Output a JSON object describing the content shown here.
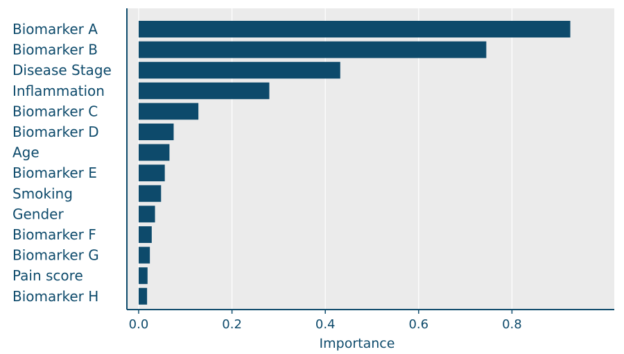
{
  "chart_data": {
    "type": "bar",
    "orientation": "horizontal",
    "title": "",
    "xlabel": "Importance",
    "ylabel": "",
    "categories": [
      "Biomarker A",
      "Biomarker B",
      "Disease Stage",
      "Inflammation",
      "Biomarker C",
      "Biomarker D",
      "Age",
      "Biomarker E",
      "Smoking",
      "Gender",
      "Biomarker F",
      "Biomarker G",
      "Pain score",
      "Biomarker H"
    ],
    "values": [
      0.925,
      0.745,
      0.432,
      0.28,
      0.128,
      0.075,
      0.066,
      0.056,
      0.048,
      0.035,
      0.028,
      0.024,
      0.019,
      0.018
    ],
    "xlim": [
      -0.02,
      1.03
    ],
    "xticks": [
      0.0,
      0.2,
      0.4,
      0.6,
      0.8
    ],
    "xtick_labels": [
      "0.0",
      "0.2",
      "0.4",
      "0.6",
      "0.8"
    ],
    "grid": true,
    "bar_color": "#0d4a6b",
    "background_color": "#ebebeb",
    "text_color": "#0d4a6b"
  }
}
